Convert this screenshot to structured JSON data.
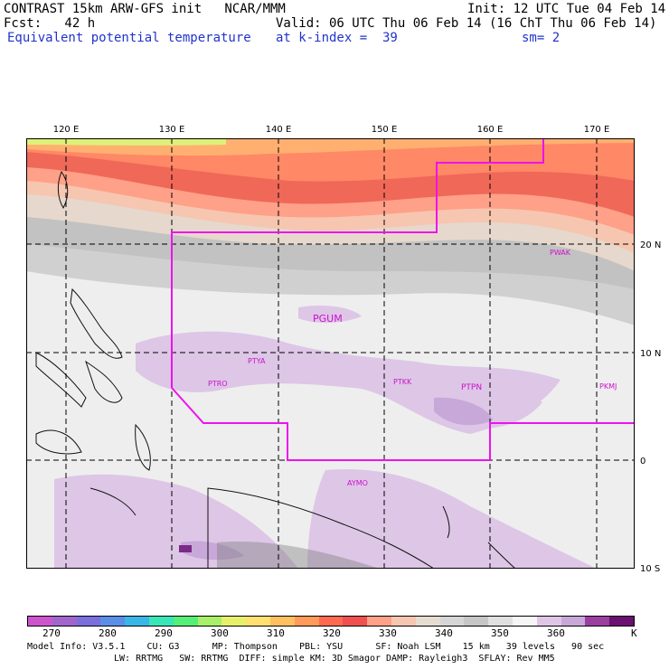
{
  "header": {
    "line1_left": "CONTRAST 15km ARW-GFS init   NCAR/MMM",
    "line1_right": "Init: 12 UTC Tue 04 Feb 14",
    "line2_left": "Fcst:   42 h",
    "line2_right": "Valid: 06 UTC Thu 06 Feb 14 (16 ChT Thu 06 Feb 14)",
    "line3_field": "Equivalent potential temperature",
    "line3_level": "at k-index =  39",
    "line3_smooth": "sm= 2"
  },
  "map": {
    "lon_labels": [
      "120 E",
      "130 E",
      "140 E",
      "150 E",
      "160 E",
      "170 E"
    ],
    "lat_labels": [
      "20 N",
      "10 N",
      "0",
      "10 S"
    ],
    "stations": [
      {
        "id": "PWAK"
      },
      {
        "id": "PGUM"
      },
      {
        "id": "PTYA"
      },
      {
        "id": "PTRO"
      },
      {
        "id": "PTKK"
      },
      {
        "id": "PTPN"
      },
      {
        "id": "PKMJ"
      },
      {
        "id": "AYMO"
      }
    ],
    "colors": {
      "boundary": "#ee11ee",
      "grid": "#000000"
    }
  },
  "colorbar": {
    "labels": [
      "270",
      "280",
      "290",
      "300",
      "310",
      "320",
      "330",
      "340",
      "350",
      "360",
      "K"
    ],
    "colors": [
      "#cc55cc",
      "#a066cc",
      "#7a6fdd",
      "#5a8ee8",
      "#3ab6e6",
      "#38e6b8",
      "#55ee77",
      "#a8f06a",
      "#e6f06a",
      "#ffe070",
      "#ffc060",
      "#ff9a5a",
      "#ff6a50",
      "#f05050",
      "#ffa088",
      "#f6c6b0",
      "#e6dcd0",
      "#d6d6d6",
      "#c6c6c6",
      "#e0e0e0",
      "#f6f6f6",
      "#e0c6e6",
      "#c8a8d8",
      "#9a3fa0",
      "#6a1070"
    ]
  },
  "footer": {
    "line1": "Model Info: V3.5.1    CU: G3      MP: Thompson    PBL: YSU      SF: Noah LSM    15 km   39 levels   90 sec",
    "line2": "LW: RRTMG   SW: RRTMG  DIFF: simple KM: 3D Smagor DAMP: Rayleigh3  SFLAY: Rev MM5"
  }
}
